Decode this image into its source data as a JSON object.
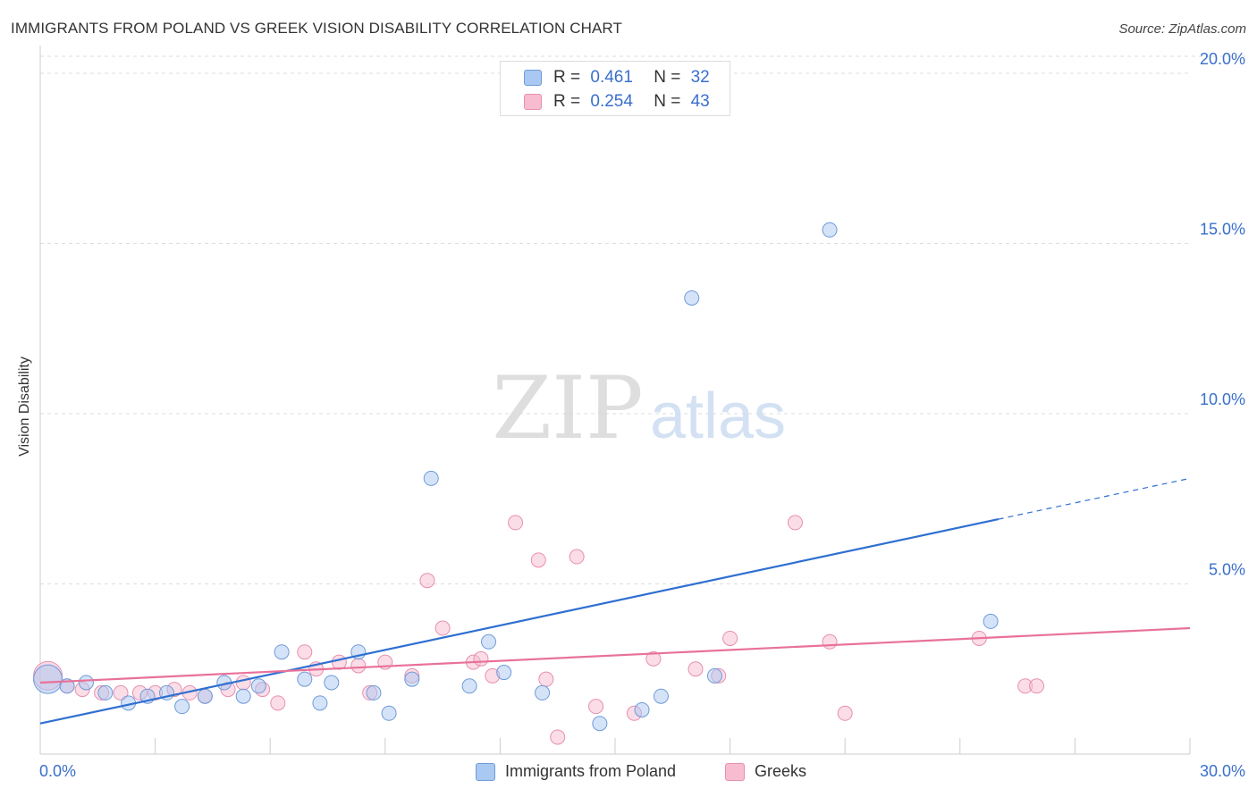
{
  "header": {
    "title": "IMMIGRANTS FROM POLAND VS GREEK VISION DISABILITY CORRELATION CHART",
    "source": "Source: ZipAtlas.com"
  },
  "watermark": {
    "zip": "ZIP",
    "atlas": "atlas"
  },
  "legend_top": [
    {
      "r_label": "R =",
      "r_value": "0.461",
      "n_label": "N =",
      "n_value": "32"
    },
    {
      "r_label": "R =",
      "r_value": "0.254",
      "n_label": "N =",
      "n_value": "43"
    }
  ],
  "legend_bottom": [
    {
      "label": "Immigrants from Poland"
    },
    {
      "label": "Greeks"
    }
  ],
  "colors": {
    "poland_fill": "#a9c8f2",
    "poland_stroke": "#6f9bd8",
    "poland_line": "#2f6fd1",
    "greek_fill": "#f7bcd0",
    "greek_stroke": "#e78fb0",
    "greek_line": "#e8719a",
    "tick_text": "#3a6fcc",
    "grid": "#dddddd"
  },
  "chart_data": {
    "type": "scatter",
    "title": "IMMIGRANTS FROM POLAND VS GREEK VISION DISABILITY CORRELATION CHART",
    "xlabel": "",
    "ylabel": "Vision Disability",
    "xlim": [
      0,
      30
    ],
    "ylim": [
      0,
      20.5
    ],
    "x_tick_labels": [
      "0.0%",
      "30.0%"
    ],
    "y_ticks": [
      5,
      10,
      15,
      20
    ],
    "y_tick_labels": [
      "5.0%",
      "10.0%",
      "15.0%",
      "20.0%"
    ],
    "grid": true,
    "series": [
      {
        "name": "Immigrants from Poland",
        "r": 0.461,
        "n": 32,
        "trend": {
          "x0": 0,
          "y0": 0.9,
          "x1": 25.0,
          "y1": 6.9,
          "dashed_to_x": 30.0,
          "dashed_to_y": 8.1
        },
        "points": [
          [
            0.2,
            2.2
          ],
          [
            0.7,
            2.0
          ],
          [
            1.2,
            2.1
          ],
          [
            1.7,
            1.8
          ],
          [
            2.3,
            1.5
          ],
          [
            2.8,
            1.7
          ],
          [
            3.3,
            1.8
          ],
          [
            3.7,
            1.4
          ],
          [
            4.3,
            1.7
          ],
          [
            4.8,
            2.1
          ],
          [
            5.3,
            1.7
          ],
          [
            5.7,
            2.0
          ],
          [
            6.3,
            3.0
          ],
          [
            6.9,
            2.2
          ],
          [
            7.3,
            1.5
          ],
          [
            7.6,
            2.1
          ],
          [
            8.3,
            3.0
          ],
          [
            8.7,
            1.8
          ],
          [
            9.1,
            1.2
          ],
          [
            9.7,
            2.2
          ],
          [
            10.2,
            8.1
          ],
          [
            11.2,
            2.0
          ],
          [
            11.7,
            3.3
          ],
          [
            12.1,
            2.4
          ],
          [
            13.1,
            1.8
          ],
          [
            14.6,
            0.9
          ],
          [
            15.7,
            1.3
          ],
          [
            16.2,
            1.7
          ],
          [
            17.0,
            13.4
          ],
          [
            17.6,
            2.3
          ],
          [
            20.6,
            15.4
          ],
          [
            24.8,
            3.9
          ]
        ]
      },
      {
        "name": "Greeks",
        "r": 0.254,
        "n": 43,
        "trend": {
          "x0": 0,
          "y0": 2.1,
          "x1": 30.0,
          "y1": 3.7
        },
        "points": [
          [
            0.2,
            2.3
          ],
          [
            0.7,
            2.0
          ],
          [
            1.1,
            1.9
          ],
          [
            1.6,
            1.8
          ],
          [
            2.1,
            1.8
          ],
          [
            2.6,
            1.8
          ],
          [
            3.0,
            1.8
          ],
          [
            3.5,
            1.9
          ],
          [
            3.9,
            1.8
          ],
          [
            4.3,
            1.7
          ],
          [
            4.9,
            1.9
          ],
          [
            5.3,
            2.1
          ],
          [
            5.8,
            1.9
          ],
          [
            6.2,
            1.5
          ],
          [
            6.9,
            3.0
          ],
          [
            7.2,
            2.5
          ],
          [
            7.8,
            2.7
          ],
          [
            8.3,
            2.6
          ],
          [
            8.6,
            1.8
          ],
          [
            9.0,
            2.7
          ],
          [
            9.7,
            2.3
          ],
          [
            10.1,
            5.1
          ],
          [
            10.5,
            3.7
          ],
          [
            11.3,
            2.7
          ],
          [
            11.5,
            2.8
          ],
          [
            11.8,
            2.3
          ],
          [
            12.4,
            6.8
          ],
          [
            13.0,
            5.7
          ],
          [
            13.2,
            2.2
          ],
          [
            13.5,
            0.5
          ],
          [
            14.0,
            5.8
          ],
          [
            14.5,
            1.4
          ],
          [
            15.5,
            1.2
          ],
          [
            16.0,
            2.8
          ],
          [
            17.1,
            2.5
          ],
          [
            18.0,
            3.4
          ],
          [
            19.7,
            6.8
          ],
          [
            20.6,
            3.3
          ],
          [
            21.0,
            1.2
          ],
          [
            24.5,
            3.4
          ],
          [
            25.7,
            2.0
          ],
          [
            26.0,
            2.0
          ],
          [
            17.7,
            2.3
          ]
        ]
      }
    ]
  }
}
